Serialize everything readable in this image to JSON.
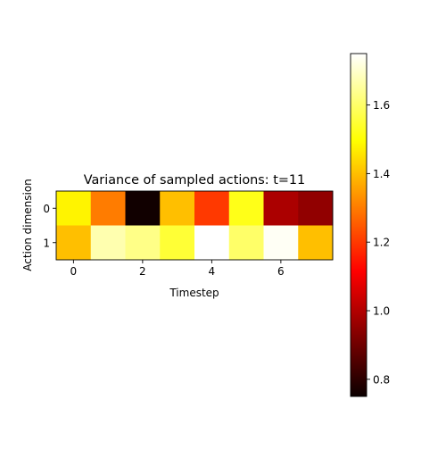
{
  "chart_data": {
    "type": "heatmap",
    "title": "Variance of sampled actions: t=11",
    "xlabel": "Timestep",
    "ylabel": "Action dimension",
    "x_range": [
      -0.5,
      7.5
    ],
    "y_range": [
      -0.5,
      1.5
    ],
    "x_ticks": [
      0,
      2,
      4,
      6
    ],
    "y_ticks": [
      0,
      1
    ],
    "colormap": "hot",
    "colorbar": {
      "vmin": 0.75,
      "vmax": 1.75,
      "ticks": [
        0.8,
        1.0,
        1.2,
        1.4,
        1.6
      ],
      "tick_labels": [
        "0.8",
        "1.0",
        "1.2",
        "1.4",
        "1.6"
      ]
    },
    "rows": [
      0,
      1
    ],
    "columns": [
      0,
      1,
      2,
      3,
      4,
      5,
      6,
      7
    ],
    "values": [
      [
        1.48,
        1.3,
        0.76,
        1.4,
        1.2,
        1.52,
        0.99,
        0.95
      ],
      [
        1.4,
        1.67,
        1.63,
        1.55,
        1.75,
        1.6,
        1.74,
        1.4
      ]
    ],
    "grid": false
  }
}
